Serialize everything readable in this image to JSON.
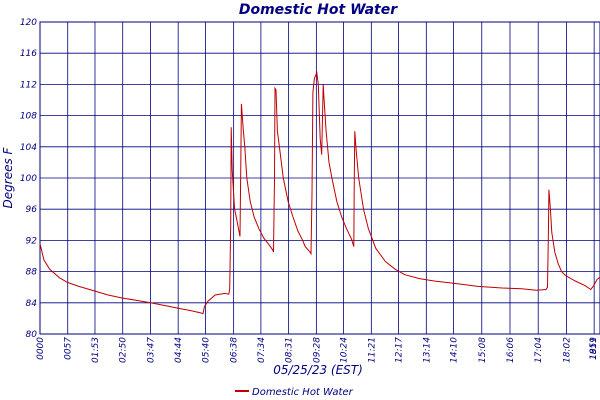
{
  "chart_data": {
    "type": "line",
    "title": "Domestic Hot Water",
    "xlabel": "05/25/23 (EST)",
    "ylabel": "Degrees F",
    "ylim": [
      80,
      120
    ],
    "yticks": [
      80,
      84,
      88,
      92,
      96,
      100,
      104,
      108,
      112,
      116,
      120
    ],
    "x_range_minutes": [
      0,
      1151
    ],
    "xticks": [
      {
        "label": "0000",
        "minute": 0
      },
      {
        "label": "0057",
        "minute": 57
      },
      {
        "label": "01:53",
        "minute": 113
      },
      {
        "label": "02:50",
        "minute": 170
      },
      {
        "label": "03:47",
        "minute": 227
      },
      {
        "label": "04:44",
        "minute": 284
      },
      {
        "label": "05:40",
        "minute": 340
      },
      {
        "label": "06:38",
        "minute": 398
      },
      {
        "label": "07:34",
        "minute": 454
      },
      {
        "label": "08:31",
        "minute": 511
      },
      {
        "label": "09:28",
        "minute": 568
      },
      {
        "label": "10:24",
        "minute": 624
      },
      {
        "label": "11:21",
        "minute": 681
      },
      {
        "label": "12:17",
        "minute": 737
      },
      {
        "label": "13:14",
        "minute": 794
      },
      {
        "label": "14:10",
        "minute": 850
      },
      {
        "label": "15:08",
        "minute": 908
      },
      {
        "label": "16:06",
        "minute": 966
      },
      {
        "label": "17:04",
        "minute": 1024
      },
      {
        "label": "18:02",
        "minute": 1082
      },
      {
        "label": "1859",
        "minute": 1139
      },
      {
        "label": "1911",
        "minute": 1151
      }
    ],
    "grid": true,
    "legend_position": "bottom-center",
    "series": [
      {
        "name": "Domestic Hot Water",
        "color": "#c00000",
        "points": [
          [
            0,
            91.6
          ],
          [
            8,
            89.5
          ],
          [
            20,
            88.3
          ],
          [
            40,
            87.2
          ],
          [
            57,
            86.6
          ],
          [
            80,
            86.1
          ],
          [
            113,
            85.5
          ],
          [
            140,
            85.0
          ],
          [
            170,
            84.6
          ],
          [
            200,
            84.3
          ],
          [
            227,
            84.0
          ],
          [
            260,
            83.6
          ],
          [
            284,
            83.3
          ],
          [
            310,
            83.0
          ],
          [
            330,
            82.7
          ],
          [
            335,
            82.6
          ],
          [
            338,
            83.5
          ],
          [
            345,
            84.2
          ],
          [
            360,
            85.0
          ],
          [
            380,
            85.2
          ],
          [
            388,
            85.1
          ],
          [
            390,
            85.8
          ],
          [
            392,
            94.0
          ],
          [
            393,
            106.5
          ],
          [
            395,
            101.0
          ],
          [
            400,
            96.0
          ],
          [
            405,
            94.5
          ],
          [
            411,
            92.5
          ],
          [
            413,
            103.0
          ],
          [
            414,
            109.5
          ],
          [
            418,
            106.0
          ],
          [
            421,
            104.0
          ],
          [
            425,
            100.0
          ],
          [
            432,
            97.0
          ],
          [
            440,
            95.0
          ],
          [
            450,
            93.5
          ],
          [
            460,
            92.3
          ],
          [
            470,
            91.5
          ],
          [
            478,
            90.8
          ],
          [
            480,
            90.5
          ],
          [
            482,
            100.0
          ],
          [
            483,
            111.5
          ],
          [
            485,
            111.3
          ],
          [
            488,
            106.0
          ],
          [
            492,
            104.0
          ],
          [
            500,
            100.0
          ],
          [
            510,
            97.0
          ],
          [
            520,
            95.0
          ],
          [
            530,
            93.2
          ],
          [
            540,
            92.0
          ],
          [
            545,
            91.2
          ],
          [
            555,
            90.5
          ],
          [
            557,
            90.3
          ],
          [
            559,
            98.0
          ],
          [
            561,
            111.0
          ],
          [
            564,
            112.8
          ],
          [
            569,
            113.5
          ],
          [
            572,
            112.0
          ],
          [
            576,
            105.0
          ],
          [
            579,
            103.0
          ],
          [
            581,
            109.0
          ],
          [
            582,
            112.0
          ],
          [
            584,
            110.0
          ],
          [
            588,
            106.0
          ],
          [
            594,
            102.0
          ],
          [
            600,
            100.0
          ],
          [
            610,
            97.0
          ],
          [
            620,
            95.0
          ],
          [
            630,
            93.5
          ],
          [
            640,
            92.2
          ],
          [
            645,
            91.2
          ],
          [
            646,
            100.0
          ],
          [
            647,
            106.0
          ],
          [
            650,
            103.5
          ],
          [
            655,
            100.0
          ],
          [
            665,
            96.0
          ],
          [
            675,
            93.5
          ],
          [
            690,
            91.0
          ],
          [
            710,
            89.3
          ],
          [
            730,
            88.3
          ],
          [
            750,
            87.6
          ],
          [
            780,
            87.1
          ],
          [
            810,
            86.8
          ],
          [
            850,
            86.5
          ],
          [
            900,
            86.1
          ],
          [
            950,
            85.9
          ],
          [
            990,
            85.8
          ],
          [
            1020,
            85.6
          ],
          [
            1040,
            85.7
          ],
          [
            1043,
            86.0
          ],
          [
            1045,
            93.0
          ],
          [
            1046,
            98.5
          ],
          [
            1049,
            96.0
          ],
          [
            1052,
            93.0
          ],
          [
            1058,
            90.5
          ],
          [
            1065,
            89.0
          ],
          [
            1072,
            88.0
          ],
          [
            1080,
            87.5
          ],
          [
            1100,
            86.8
          ],
          [
            1120,
            86.2
          ],
          [
            1132,
            85.7
          ],
          [
            1138,
            86.2
          ],
          [
            1145,
            87.0
          ],
          [
            1151,
            87.3
          ]
        ]
      }
    ]
  }
}
